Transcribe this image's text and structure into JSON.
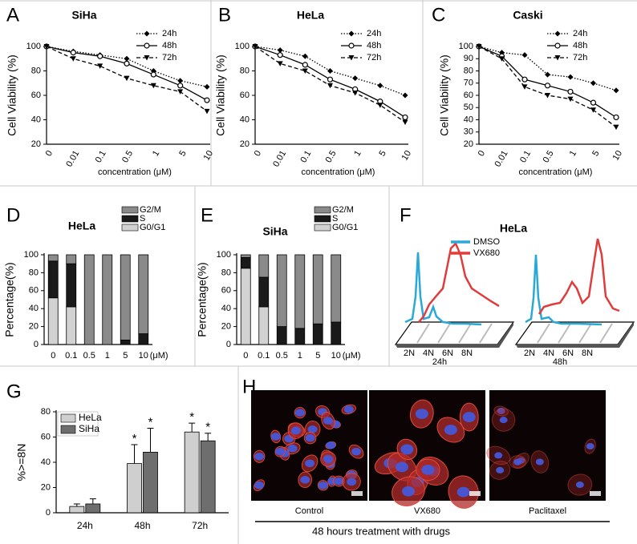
{
  "chart_data": [
    {
      "panel": "A",
      "type": "line",
      "title": "SiHa",
      "categories": [
        "0",
        "0.01",
        "0.1",
        "0.5",
        "1",
        "5",
        "10"
      ],
      "x_label": "concentration (μM)",
      "y_label": "Cell Viability (%)",
      "ylim": [
        20,
        100
      ],
      "yticks": [
        20,
        40,
        60,
        80,
        100
      ],
      "series": [
        {
          "name": "24h",
          "color": "#000000",
          "dash": "dotted",
          "marker": "diamond",
          "values": [
            100,
            96,
            93,
            90,
            80,
            72,
            67
          ]
        },
        {
          "name": "48h",
          "color": "#000000",
          "dash": "solid",
          "marker": "open-circle",
          "values": [
            100,
            95,
            92,
            86,
            77,
            68,
            56
          ]
        },
        {
          "name": "72h",
          "color": "#000000",
          "dash": "dashed",
          "marker": "triangle-down",
          "values": [
            100,
            90,
            84,
            74,
            68,
            63,
            47
          ]
        }
      ]
    },
    {
      "panel": "B",
      "type": "line",
      "title": "HeLa",
      "categories": [
        "0",
        "0.01",
        "0.1",
        "0.5",
        "1",
        "5",
        "10"
      ],
      "x_label": "concentration (μM)",
      "y_label": "Cell Viability (%)",
      "ylim": [
        20,
        100
      ],
      "yticks": [
        20,
        40,
        60,
        80,
        100
      ],
      "series": [
        {
          "name": "24h",
          "color": "#000000",
          "dash": "dotted",
          "marker": "diamond",
          "values": [
            100,
            97,
            92,
            80,
            74,
            68,
            60
          ]
        },
        {
          "name": "48h",
          "color": "#000000",
          "dash": "solid",
          "marker": "open-circle",
          "values": [
            100,
            93,
            85,
            73,
            65,
            55,
            42
          ]
        },
        {
          "name": "72h",
          "color": "#000000",
          "dash": "dashed",
          "marker": "triangle-down",
          "values": [
            100,
            86,
            80,
            68,
            62,
            52,
            38
          ]
        }
      ]
    },
    {
      "panel": "C",
      "type": "line",
      "title": "Caski",
      "categories": [
        "0",
        "0.01",
        "0.1",
        "0.5",
        "1",
        "5",
        "10"
      ],
      "x_label": "concentration (μM)",
      "y_label": "Cell Viability (%)",
      "ylim": [
        20,
        100
      ],
      "yticks": [
        20,
        30,
        40,
        50,
        60,
        70,
        80,
        90,
        100
      ],
      "series": [
        {
          "name": "24h",
          "color": "#000000",
          "dash": "dotted",
          "marker": "diamond",
          "values": [
            100,
            95,
            93,
            77,
            75,
            70,
            64
          ]
        },
        {
          "name": "48h",
          "color": "#000000",
          "dash": "solid",
          "marker": "open-circle",
          "values": [
            100,
            92,
            73,
            68,
            63,
            54,
            42
          ]
        },
        {
          "name": "72h",
          "color": "#000000",
          "dash": "dashed",
          "marker": "triangle-down",
          "values": [
            100,
            90,
            67,
            60,
            57,
            48,
            34
          ]
        }
      ]
    },
    {
      "panel": "D",
      "type": "stacked-bar",
      "title": "HeLa",
      "categories": [
        "0",
        "0.1",
        "0.5",
        "1",
        "5",
        "10"
      ],
      "x_unit": "(μM)",
      "y_label": "Percentage(%)",
      "ylim": [
        0,
        100
      ],
      "yticks": [
        0,
        20,
        40,
        60,
        80,
        100
      ],
      "series": [
        {
          "name": "G0/G1",
          "color": "#d2d2d2",
          "values": [
            52,
            42,
            0,
            0,
            0,
            0
          ]
        },
        {
          "name": "S",
          "color": "#1a1a1a",
          "values": [
            41,
            48,
            0,
            0,
            5,
            12
          ]
        },
        {
          "name": "G2/M",
          "color": "#8a8a8a",
          "values": [
            7,
            10,
            100,
            100,
            95,
            88
          ]
        }
      ]
    },
    {
      "panel": "E",
      "type": "stacked-bar",
      "title": "SiHa",
      "categories": [
        "0",
        "0.1",
        "0.5",
        "1",
        "5",
        "10"
      ],
      "x_unit": "(μM)",
      "y_label": "Percentage(%)",
      "ylim": [
        0,
        100
      ],
      "yticks": [
        0,
        20,
        40,
        60,
        80,
        100
      ],
      "series": [
        {
          "name": "G0/G1",
          "color": "#d2d2d2",
          "values": [
            85,
            42,
            0,
            0,
            0,
            0
          ]
        },
        {
          "name": "S",
          "color": "#1a1a1a",
          "values": [
            12,
            33,
            20,
            18,
            23,
            25
          ]
        },
        {
          "name": "G2/M",
          "color": "#8a8a8a",
          "values": [
            3,
            25,
            80,
            82,
            77,
            75
          ]
        }
      ]
    },
    {
      "panel": "F",
      "type": "flow-histogram",
      "title": "HeLa",
      "x_labels": [
        "2N",
        "4N",
        "6N",
        "8N"
      ],
      "panels": [
        "24h",
        "48h"
      ],
      "series": [
        {
          "name": "DMSO",
          "color": "#2aa9d9"
        },
        {
          "name": "VX680",
          "color": "#e03c3c"
        }
      ]
    },
    {
      "panel": "G",
      "type": "grouped-bar",
      "categories": [
        "24h",
        "48h",
        "72h"
      ],
      "y_label": "%>=8N",
      "ylim": [
        0,
        80
      ],
      "yticks": [
        0,
        20,
        40,
        60,
        80
      ],
      "series": [
        {
          "name": "HeLa",
          "color": "#cfcfcf",
          "values": [
            5,
            39,
            64
          ],
          "errors": [
            2,
            15,
            7
          ],
          "stars": [
            null,
            "*",
            "*"
          ]
        },
        {
          "name": "SiHa",
          "color": "#6e6e6e",
          "values": [
            7,
            48,
            57
          ],
          "errors": [
            4,
            19,
            6
          ],
          "stars": [
            null,
            "*",
            "*"
          ]
        }
      ]
    },
    {
      "panel": "H",
      "type": "image-panel",
      "labels": [
        "Control",
        "VX680",
        "Paclitaxel"
      ],
      "caption": "48 hours treatment with drugs"
    }
  ]
}
